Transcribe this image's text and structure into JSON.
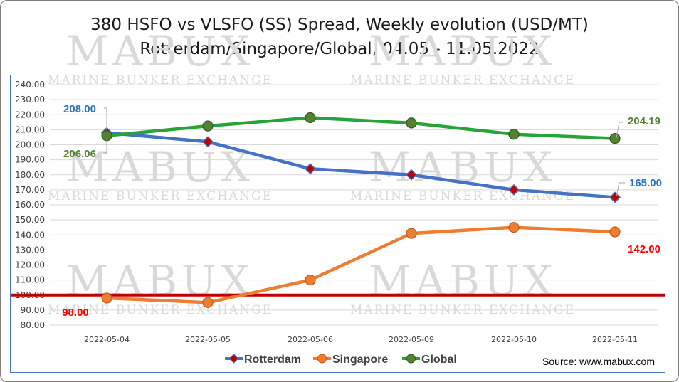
{
  "title_line1": "380 HSFO vs VLSFO (SS) Spread, Weekly evolution (USD/MT)",
  "title_line2": "Rotterdam/Singapore/Global, 04.05 - 11.05.2022",
  "source": "Source: www.mabux.com",
  "watermark": {
    "brand": "MABUX",
    "tagline": "MARINE BUNKER EXCHANGE"
  },
  "chart_data": {
    "type": "line",
    "title": "380 HSFO vs VLSFO (SS) Spread, Weekly evolution (USD/MT) Rotterdam/Singapore/Global, 04.05 - 11.05.2022",
    "categories": [
      "2022-05-04",
      "2022-05-05",
      "2022-05-06",
      "2022-05-09",
      "2022-05-10",
      "2022-05-11"
    ],
    "ylim": [
      80,
      240
    ],
    "ytick_step": 10,
    "ytick_labels": [
      "80.00",
      "90.00",
      "100.00",
      "110.00",
      "120.00",
      "130.00",
      "140.00",
      "150.00",
      "160.00",
      "170.00",
      "180.00",
      "190.00",
      "200.00",
      "210.00",
      "220.00",
      "230.00",
      "240.00"
    ],
    "grid": true,
    "legend_position": "bottom",
    "reference_line": {
      "value": 100,
      "color": "#c00000"
    },
    "series": [
      {
        "name": "Rotterdam",
        "color": "#4472c4",
        "marker": "diamond",
        "marker_color": "#c00000",
        "values": [
          208.0,
          202.0,
          184.0,
          180.0,
          170.0,
          165.0
        ],
        "labels": [
          {
            "index": 0,
            "text": "208.00"
          },
          {
            "index": 5,
            "text": "165.00"
          }
        ]
      },
      {
        "name": "Singapore",
        "color": "#ed7d31",
        "marker": "circle",
        "marker_color": "#ed7d31",
        "values": [
          98.0,
          95.0,
          110.0,
          141.0,
          145.0,
          142.0
        ],
        "labels": [
          {
            "index": 0,
            "text": "98.00"
          },
          {
            "index": 5,
            "text": "142.00"
          }
        ]
      },
      {
        "name": "Global",
        "color": "#27a33a",
        "marker": "circle",
        "marker_color": "#548235",
        "values": [
          206.06,
          212.5,
          218.0,
          214.5,
          207.0,
          204.19
        ],
        "labels": [
          {
            "index": 0,
            "text": "206.06"
          },
          {
            "index": 5,
            "text": "204.19"
          }
        ]
      }
    ],
    "label_colors": {
      "Rotterdam": "#2e75b6",
      "Singapore": "#ff0000",
      "Global": "#548235"
    }
  }
}
